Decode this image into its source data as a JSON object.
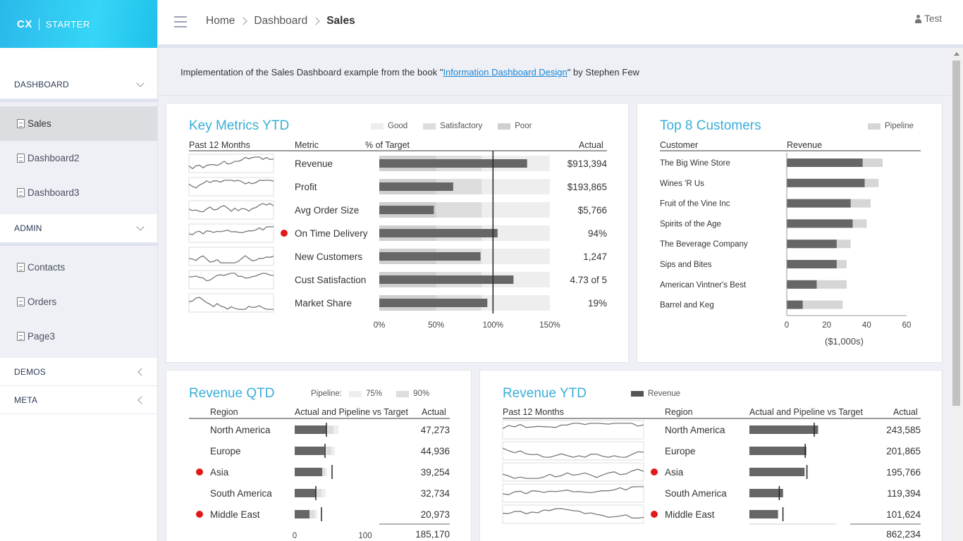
{
  "brand": {
    "logo": "CX",
    "name": "STARTER"
  },
  "sidebar": {
    "sections": [
      {
        "label": "DASHBOARD",
        "items": [
          "Sales",
          "Dashboard2",
          "Dashboard3"
        ]
      },
      {
        "label": "ADMIN",
        "items": [
          "Contacts",
          "Orders",
          "Page3"
        ]
      },
      {
        "label": "DEMOS"
      },
      {
        "label": "META"
      }
    ]
  },
  "header": {
    "breadcrumb": [
      "Home",
      "Dashboard",
      "Sales"
    ],
    "user": "Test"
  },
  "intro": {
    "before": "Implementation of the Sales Dashboard example from the book \"",
    "link": "Information Dashboard Design",
    "after": "\" by Stephen Few"
  },
  "colors": {
    "accent": "#3aaed8",
    "bar": "#666666",
    "alert": "#e0191b",
    "good": "#eeeeee",
    "satisfactory": "#dddddd",
    "poor": "#cfcfcf"
  },
  "key_metrics": {
    "title": "Key Metrics YTD",
    "legend": [
      "Good",
      "Satisfactory",
      "Poor"
    ],
    "headers": {
      "spark": "Past 12 Months",
      "metric": "Metric",
      "pct": "% of Target",
      "actual": "Actual"
    },
    "axis_ticks": [
      "0%",
      "50%",
      "100%",
      "150%"
    ],
    "rows": [
      {
        "metric": "Revenue",
        "actual": "$913,394",
        "pct": 130,
        "alert": false
      },
      {
        "metric": "Profit",
        "actual": "$193,865",
        "pct": 65,
        "alert": false
      },
      {
        "metric": "Avg Order Size",
        "actual": "$5,766",
        "pct": 48,
        "alert": false
      },
      {
        "metric": "On Time Delivery",
        "actual": "94%",
        "pct": 104,
        "alert": true
      },
      {
        "metric": "New Customers",
        "actual": "1,247",
        "pct": 89,
        "alert": false
      },
      {
        "metric": "Cust Satisfaction",
        "actual": "4.73 of 5",
        "pct": 118,
        "alert": false
      },
      {
        "metric": "Market Share",
        "actual": "19%",
        "pct": 95,
        "alert": false
      }
    ]
  },
  "top_customers": {
    "title": "Top 8 Customers",
    "legend": "Pipeline",
    "headers": {
      "customer": "Customer",
      "revenue": "Revenue"
    },
    "axis_ticks": [
      "0",
      "20",
      "40",
      "60"
    ],
    "axis_label": "($1,000s)",
    "rows": [
      {
        "name": "The Big Wine Store",
        "revenue": 38,
        "pipeline": 48
      },
      {
        "name": "Wines 'R Us",
        "revenue": 39,
        "pipeline": 46
      },
      {
        "name": "Fruit of the Vine Inc",
        "revenue": 32,
        "pipeline": 42
      },
      {
        "name": "Spirits of the Age",
        "revenue": 33,
        "pipeline": 40
      },
      {
        "name": "The Beverage Company",
        "revenue": 25,
        "pipeline": 32
      },
      {
        "name": "Sips and Bites",
        "revenue": 25,
        "pipeline": 30
      },
      {
        "name": "American Vintner's Best",
        "revenue": 15,
        "pipeline": 30
      },
      {
        "name": "Barrel and Keg",
        "revenue": 8,
        "pipeline": 28
      }
    ]
  },
  "revenue_qtd": {
    "title": "Revenue QTD",
    "legend": {
      "label": "Pipeline:",
      "a": "75%",
      "b": "90%"
    },
    "headers": {
      "region": "Region",
      "chart": "Actual and Pipeline vs Target",
      "actual": "Actual"
    },
    "axis_ticks": [
      "0",
      "100"
    ],
    "total": "185,170",
    "rows": [
      {
        "region": "North America",
        "actual": "47,273",
        "value": 45,
        "p75": 55,
        "p90": 62,
        "target": 45,
        "alert": false
      },
      {
        "region": "Europe",
        "actual": "44,936",
        "value": 42,
        "p75": 52,
        "p90": 57,
        "target": 43,
        "alert": false
      },
      {
        "region": "Asia",
        "actual": "39,254",
        "value": 39,
        "p75": 43,
        "p90": 46,
        "target": 53,
        "alert": true
      },
      {
        "region": "South America",
        "actual": "32,734",
        "value": 30,
        "p75": 38,
        "p90": 44,
        "target": 30,
        "alert": false
      },
      {
        "region": "Middle East",
        "actual": "20,973",
        "value": 21,
        "p75": 28,
        "p90": 32,
        "target": 38,
        "alert": true
      }
    ]
  },
  "revenue_ytd": {
    "title": "Revenue YTD",
    "legend": "Revenue",
    "headers": {
      "spark": "Past 12 Months",
      "region": "Region",
      "chart": "Actual and Pipeline vs Target",
      "actual": "Actual"
    },
    "total": "862,234",
    "rows": [
      {
        "region": "North America",
        "actual": "243,585",
        "value": 243.6,
        "target": 230,
        "alert": false
      },
      {
        "region": "Europe",
        "actual": "201,865",
        "value": 201.9,
        "target": 198,
        "alert": false
      },
      {
        "region": "Asia",
        "actual": "195,766",
        "value": 195.8,
        "target": 204,
        "alert": true
      },
      {
        "region": "South America",
        "actual": "119,394",
        "value": 119.4,
        "target": 106,
        "alert": false
      },
      {
        "region": "Middle East",
        "actual": "101,624",
        "value": 101.6,
        "target": 119,
        "alert": true
      }
    ]
  }
}
